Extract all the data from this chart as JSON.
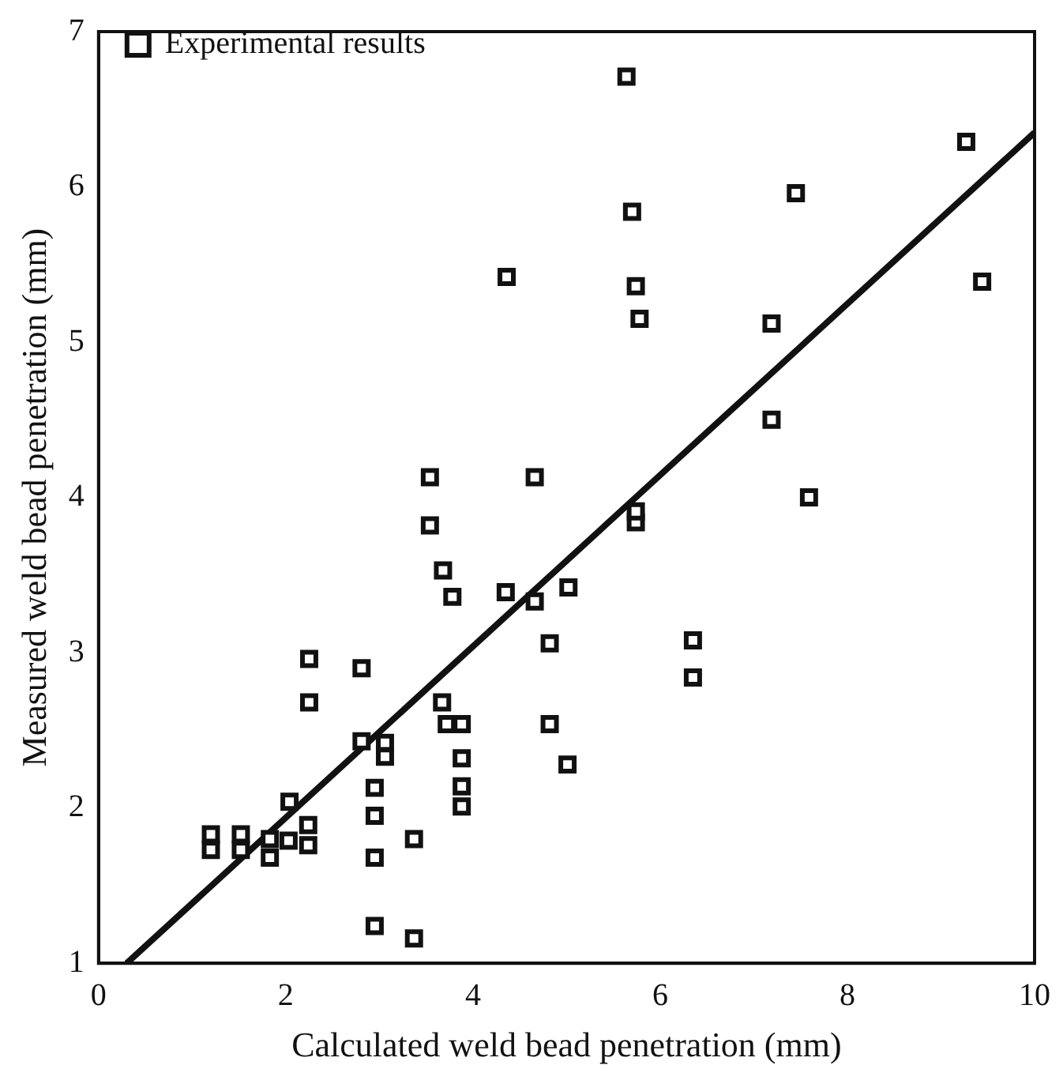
{
  "chart_data": {
    "type": "scatter",
    "xlabel": "Calculated weld bead penetration (mm)",
    "ylabel": "Measured weld bead penetration (mm)",
    "xlim": [
      0,
      10
    ],
    "xticks": [
      0,
      2,
      4,
      6,
      8,
      10
    ],
    "ylim": [
      1,
      7
    ],
    "yticks": [
      1,
      2,
      3,
      4,
      5,
      6,
      7
    ],
    "grid": false,
    "legend": "top left",
    "marker": "square",
    "series": [
      {
        "name": "Experimental results",
        "color": "#111111",
        "x": [
          2.25,
          2.81,
          2.25,
          3.67,
          3.72,
          3.88,
          4.82,
          4.82,
          5.01,
          2.81,
          3.06,
          3.06,
          3.88,
          3.88,
          3.88,
          2.95,
          2.95,
          3.37,
          2.95,
          2.95,
          3.37,
          2.04,
          2.24,
          2.24,
          2.03,
          1.83,
          1.83,
          1.52,
          1.52,
          1.2,
          1.2,
          4.36,
          5.74,
          5.78,
          7.19,
          7.19,
          9.44,
          3.54,
          4.66,
          3.54,
          3.68,
          3.78,
          4.35,
          4.66,
          5.02,
          5.74,
          5.74,
          7.59,
          6.35,
          6.35,
          5.64,
          5.7,
          7.45,
          9.27
        ],
        "values": [
          2.96,
          2.9,
          2.68,
          2.68,
          2.54,
          2.54,
          3.06,
          2.54,
          2.28,
          2.43,
          2.42,
          2.33,
          2.32,
          2.14,
          2.01,
          2.13,
          1.95,
          1.8,
          1.68,
          1.24,
          1.16,
          2.04,
          1.89,
          1.76,
          1.79,
          1.8,
          1.68,
          1.83,
          1.73,
          1.83,
          1.73,
          5.42,
          5.36,
          5.15,
          5.12,
          4.5,
          5.39,
          4.13,
          4.13,
          3.82,
          3.53,
          3.36,
          3.39,
          3.33,
          3.42,
          3.84,
          3.91,
          4.0,
          3.08,
          2.84,
          6.71,
          5.84,
          5.96,
          6.29
        ]
      },
      {
        "type": "line",
        "color": "#111111",
        "x": [
          0.3,
          10
        ],
        "values": [
          1,
          6.35
        ],
        "marker": "none",
        "line_style": "solid"
      }
    ]
  }
}
